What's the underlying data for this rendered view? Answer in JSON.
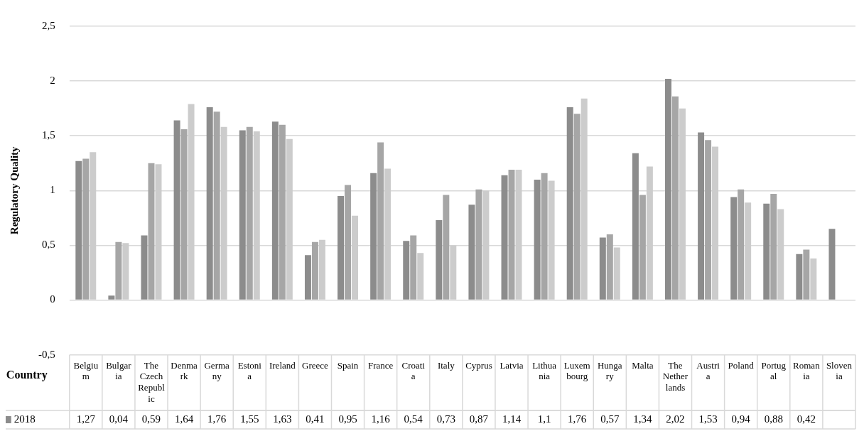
{
  "chart_data": {
    "type": "bar",
    "ylabel": "Regulatory Quality",
    "xlabel": "Country",
    "categories": [
      "Belgium",
      "Bulgaria",
      "The Czech Republic",
      "Denmark",
      "Germany",
      "Estonia",
      "Ireland",
      "Greece",
      "Spain",
      "France",
      "Croatia",
      "Italy",
      "Cyprus",
      "Latvia",
      "Lithuania",
      "Luxembourg",
      "Hungary",
      "Malta",
      "The Netherlands",
      "Austria",
      "Poland",
      "Portugal",
      "Romania",
      "Slovenia"
    ],
    "series": [
      {
        "name": "2018",
        "color": "#8c8c8c",
        "values": [
          1.27,
          0.04,
          0.59,
          1.64,
          1.76,
          1.55,
          1.63,
          0.41,
          0.95,
          1.16,
          0.54,
          0.73,
          0.87,
          1.14,
          1.1,
          1.76,
          0.57,
          1.34,
          2.02,
          1.53,
          0.94,
          0.88,
          0.42,
          0.65
        ],
        "value_labels": [
          "1,27",
          "0,04",
          "0,59",
          "1,64",
          "1,76",
          "1,55",
          "1,63",
          "0,41",
          "0,95",
          "1,16",
          "0,54",
          "0,73",
          "0,87",
          "1,14",
          "1,1",
          "1,76",
          "0,57",
          "1,34",
          "2,02",
          "1,53",
          "0,94",
          "0,88",
          "0,42",
          null
        ]
      },
      {
        "color": "#a6a6a6",
        "values": [
          1.29,
          0.53,
          1.25,
          1.56,
          1.72,
          1.58,
          1.6,
          0.53,
          1.05,
          1.44,
          0.59,
          0.96,
          1.01,
          1.19,
          1.16,
          1.7,
          0.6,
          0.96,
          1.86,
          1.46,
          1.01,
          0.97,
          0.46,
          null
        ]
      },
      {
        "color": "#cccccc",
        "values": [
          1.35,
          0.52,
          1.24,
          1.79,
          1.58,
          1.54,
          1.47,
          0.55,
          0.77,
          1.2,
          0.43,
          0.5,
          1.0,
          1.19,
          1.09,
          1.84,
          0.48,
          1.22,
          1.75,
          1.4,
          0.89,
          0.83,
          0.38,
          null
        ]
      }
    ],
    "ylim": [
      -0.5,
      2.5
    ],
    "yticks": [
      {
        "value": -0.5,
        "label": "-0,5"
      },
      0,
      {
        "value": 0.5,
        "label": "0,5"
      },
      1,
      {
        "value": 1.5,
        "label": "1,5"
      },
      2,
      {
        "value": 2.5,
        "label": "2,5"
      }
    ],
    "grid": "y"
  }
}
